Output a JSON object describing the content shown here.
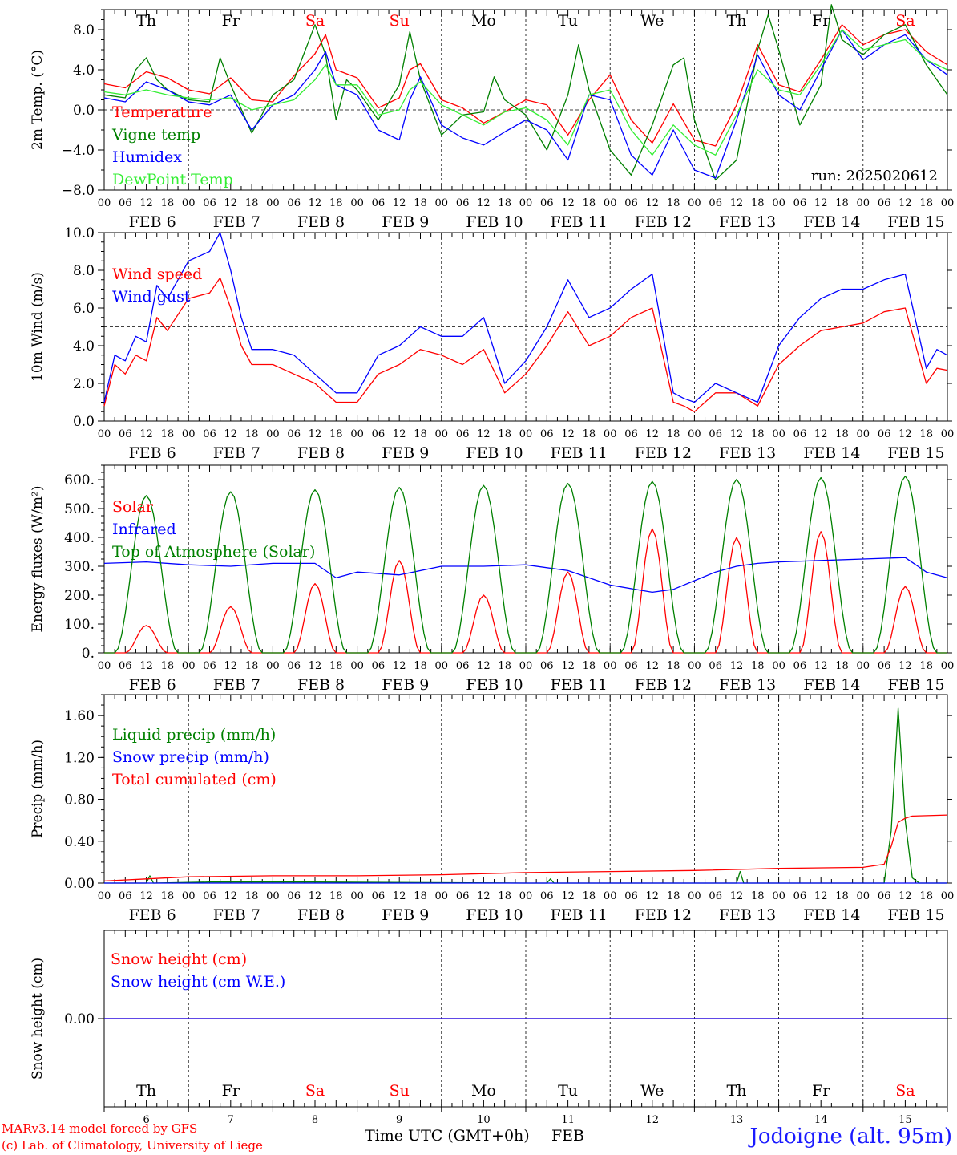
{
  "chart_data": {
    "type": "line",
    "time_axis": {
      "hour_labels": [
        "00",
        "06",
        "12",
        "18"
      ],
      "date_labels": [
        "FEB  6",
        "FEB  7",
        "FEB  8",
        "FEB  9",
        "FEB 10",
        "FEB 11",
        "FEB 12",
        "FEB 13",
        "FEB 14",
        "FEB 15"
      ],
      "weekdays": [
        "Th",
        "Fr",
        "Sa",
        "Su",
        "Mo",
        "Tu",
        "We",
        "Th",
        "Fr",
        "Sa"
      ],
      "weekend": [
        false,
        false,
        true,
        true,
        false,
        false,
        false,
        false,
        false,
        true
      ],
      "day_numbers": [
        "6",
        "7",
        "8",
        "9",
        "10",
        "11",
        "12",
        "13",
        "14",
        "15"
      ],
      "range_hours": [
        0,
        240
      ],
      "title": "Time UTC (GMT+0h)",
      "month": "FEB"
    },
    "panels": [
      {
        "id": "temp",
        "ylabel": "2m Temp. (°C)",
        "ylim": [
          -8,
          10
        ],
        "ticks": [
          -8,
          -4,
          0,
          4,
          8
        ],
        "tick_labels": [
          "−8.0",
          "−4.0",
          "0.0",
          "4.0",
          "8.0"
        ],
        "ref_line": 0,
        "run_label": "run: 2025020612",
        "series": [
          {
            "name": "Temperature",
            "color": "#ff0000",
            "x": [
              0,
              6,
              12,
              18,
              24,
              30,
              36,
              42,
              48,
              54,
              60,
              63,
              66,
              72,
              78,
              84,
              87,
              90,
              96,
              102,
              108,
              114,
              120,
              126,
              132,
              138,
              144,
              150,
              156,
              162,
              168,
              174,
              180,
              186,
              192,
              198,
              204,
              210,
              216,
              222,
              228,
              234,
              240
            ],
            "y": [
              2.6,
              2.2,
              3.8,
              3.2,
              2.0,
              1.6,
              3.2,
              1.0,
              0.8,
              3.4,
              5.6,
              7.5,
              4.0,
              3.2,
              0.2,
              1.2,
              4.0,
              4.6,
              1.0,
              0.2,
              -1.3,
              -0.2,
              1.0,
              0.5,
              -2.5,
              1.0,
              3.5,
              -1.0,
              -3.3,
              0.6,
              -3.0,
              -3.6,
              0.5,
              6.5,
              2.5,
              1.8,
              5.0,
              8.5,
              6.5,
              7.5,
              8.0,
              5.8,
              4.5
            ]
          },
          {
            "name": "Vigne temp",
            "color": "#008000",
            "x": [
              0,
              6,
              9,
              12,
              15,
              18,
              24,
              30,
              33,
              36,
              42,
              48,
              54,
              60,
              63,
              66,
              69,
              72,
              78,
              84,
              87,
              90,
              96,
              102,
              108,
              111,
              114,
              120,
              126,
              132,
              135,
              138,
              144,
              150,
              156,
              162,
              165,
              168,
              174,
              180,
              186,
              189,
              192,
              198,
              204,
              207,
              210,
              216,
              222,
              228,
              234,
              240
            ],
            "y": [
              1.5,
              1.2,
              4.0,
              5.2,
              3.0,
              2.0,
              1.0,
              0.8,
              5.2,
              2.5,
              -2.3,
              1.5,
              3.0,
              8.5,
              5.5,
              -1.0,
              3.0,
              2.0,
              -1.0,
              2.5,
              7.8,
              3.0,
              -2.5,
              -0.5,
              -0.2,
              3.3,
              1.0,
              -0.5,
              -4.0,
              1.5,
              6.5,
              2.0,
              -4.0,
              -6.5,
              -1.5,
              4.5,
              5.2,
              -1.0,
              -7.0,
              -5.0,
              6.0,
              9.5,
              6.0,
              -1.5,
              2.5,
              10.5,
              7.0,
              5.5,
              7.5,
              8.5,
              4.5,
              1.5
            ]
          },
          {
            "name": "Humidex",
            "color": "#0000ff",
            "x": [
              0,
              6,
              12,
              18,
              24,
              30,
              36,
              42,
              48,
              54,
              60,
              63,
              66,
              72,
              78,
              84,
              87,
              90,
              96,
              102,
              108,
              114,
              120,
              126,
              132,
              138,
              144,
              150,
              156,
              162,
              168,
              174,
              180,
              186,
              192,
              198,
              204,
              210,
              216,
              222,
              228,
              234,
              240
            ],
            "y": [
              1.2,
              0.8,
              2.8,
              2.0,
              0.8,
              0.5,
              1.5,
              -2.0,
              0.5,
              1.5,
              4.0,
              5.8,
              2.5,
              1.5,
              -2.0,
              -3.0,
              1.0,
              3.3,
              -1.5,
              -2.8,
              -3.5,
              -2.2,
              -1.0,
              -2.0,
              -5.0,
              1.5,
              1.0,
              -4.5,
              -6.5,
              -2.0,
              -6.0,
              -6.8,
              -1.0,
              5.5,
              1.5,
              0.0,
              4.0,
              8.0,
              5.0,
              6.5,
              7.5,
              5.0,
              3.5
            ]
          },
          {
            "name": "DewPoint Temp",
            "color": "#33ee33",
            "x": [
              0,
              6,
              12,
              18,
              24,
              30,
              36,
              42,
              48,
              54,
              60,
              63,
              66,
              72,
              78,
              84,
              87,
              90,
              96,
              102,
              108,
              114,
              120,
              126,
              132,
              138,
              144,
              150,
              156,
              162,
              168,
              174,
              180,
              186,
              192,
              198,
              204,
              210,
              216,
              222,
              228,
              234,
              240
            ],
            "y": [
              1.8,
              1.5,
              2.0,
              1.5,
              1.2,
              1.0,
              1.2,
              0.0,
              0.5,
              1.0,
              3.0,
              4.5,
              2.5,
              2.5,
              -0.5,
              0.0,
              2.0,
              2.8,
              0.5,
              -0.5,
              -1.5,
              -0.2,
              0.2,
              -1.0,
              -3.5,
              1.5,
              2.0,
              -2.0,
              -4.5,
              -1.5,
              -3.5,
              -4.5,
              -0.5,
              4.0,
              2.0,
              1.5,
              4.5,
              8.0,
              6.0,
              6.5,
              7.0,
              5.0,
              4.0
            ]
          }
        ]
      },
      {
        "id": "wind",
        "ylabel": "10m Wind (m/s)",
        "ylim": [
          0,
          10
        ],
        "ticks": [
          0,
          2,
          4,
          6,
          8,
          10
        ],
        "tick_labels": [
          "0.0",
          "2.0",
          "4.0",
          "6.0",
          "8.0",
          "10.0"
        ],
        "ref_line": 5,
        "series": [
          {
            "name": "Wind speed",
            "color": "#ff0000",
            "x": [
              0,
              3,
              6,
              9,
              12,
              15,
              18,
              24,
              30,
              33,
              36,
              39,
              42,
              48,
              54,
              60,
              66,
              72,
              78,
              84,
              90,
              96,
              102,
              108,
              114,
              120,
              126,
              132,
              138,
              144,
              150,
              156,
              162,
              165,
              168,
              174,
              180,
              186,
              192,
              198,
              204,
              210,
              216,
              222,
              228,
              234,
              237,
              240
            ],
            "y": [
              0.8,
              3.0,
              2.5,
              3.5,
              3.2,
              5.5,
              4.8,
              6.5,
              6.8,
              7.6,
              6.0,
              4.0,
              3.0,
              3.0,
              2.5,
              2.0,
              1.0,
              1.0,
              2.5,
              3.0,
              3.8,
              3.5,
              3.0,
              3.8,
              1.5,
              2.5,
              4.0,
              5.8,
              4.0,
              4.5,
              5.5,
              6.0,
              1.0,
              0.8,
              0.5,
              1.5,
              1.5,
              0.8,
              3.0,
              4.0,
              4.8,
              5.0,
              5.2,
              5.8,
              6.0,
              2.0,
              2.8,
              2.7
            ]
          },
          {
            "name": "Wind gust",
            "color": "#0000ff",
            "x": [
              0,
              3,
              6,
              9,
              12,
              15,
              18,
              24,
              30,
              33,
              36,
              39,
              42,
              48,
              54,
              60,
              66,
              72,
              78,
              84,
              90,
              96,
              102,
              108,
              114,
              120,
              126,
              132,
              138,
              144,
              150,
              156,
              162,
              165,
              168,
              174,
              180,
              186,
              192,
              198,
              204,
              210,
              216,
              222,
              228,
              234,
              237,
              240
            ],
            "y": [
              1.0,
              3.5,
              3.2,
              4.5,
              4.2,
              7.2,
              6.5,
              8.5,
              9.0,
              10.0,
              8.0,
              5.5,
              3.8,
              3.8,
              3.5,
              2.5,
              1.5,
              1.5,
              3.5,
              4.0,
              5.0,
              4.5,
              4.5,
              5.5,
              2.0,
              3.2,
              5.0,
              7.5,
              5.5,
              6.0,
              7.0,
              7.8,
              1.5,
              1.2,
              1.0,
              2.0,
              1.5,
              1.0,
              4.0,
              5.5,
              6.5,
              7.0,
              7.0,
              7.5,
              7.8,
              2.8,
              3.8,
              3.5
            ]
          }
        ]
      },
      {
        "id": "energy",
        "ylabel": "Energy fluxes (W/m²)",
        "ylim": [
          0,
          650
        ],
        "ticks": [
          0,
          100,
          200,
          300,
          400,
          500,
          600
        ],
        "tick_labels": [
          "0.",
          "100.",
          "200.",
          "300.",
          "400.",
          "500.",
          "600."
        ],
        "series": [
          {
            "name": "Solar",
            "color": "#ff0000",
            "peaks": [
              95,
              160,
              240,
              320,
              200,
              280,
              430,
              400,
              420,
              230
            ],
            "width_h": 12
          },
          {
            "name": "Infrared",
            "color": "#0000ff",
            "x": [
              0,
              12,
              24,
              36,
              48,
              60,
              66,
              72,
              84,
              96,
              108,
              120,
              132,
              144,
              156,
              162,
              168,
              174,
              180,
              186,
              192,
              204,
              216,
              228,
              234,
              240
            ],
            "y": [
              310,
              315,
              305,
              300,
              310,
              310,
              260,
              280,
              270,
              300,
              300,
              305,
              285,
              235,
              210,
              220,
              250,
              280,
              300,
              310,
              315,
              320,
              325,
              330,
              280,
              260
            ]
          },
          {
            "name": "Top of Atmosphere (Solar)",
            "color": "#008000",
            "peaks": [
              545,
              558,
              565,
              573,
              580,
              587,
              594,
              601,
              607,
              612
            ],
            "width_h": 18
          }
        ]
      },
      {
        "id": "precip",
        "ylabel": "Precip (mm/h)",
        "ylim": [
          0,
          1.8
        ],
        "ticks": [
          0,
          0.4,
          0.8,
          1.2,
          1.6
        ],
        "tick_labels": [
          "0.00",
          "0.40",
          "0.80",
          "1.20",
          "1.60"
        ],
        "series": [
          {
            "name": "Liquid precip (mm/h)",
            "color": "#008000",
            "x": [
              0,
              12,
              13,
              14,
              30,
              60,
              120,
              126,
              127,
              128,
              180,
              181,
              182,
              222,
              224,
              226,
              228,
              230,
              232,
              234,
              240
            ],
            "y": [
              0,
              0,
              0.07,
              0,
              0.01,
              0.01,
              0,
              0,
              0.04,
              0,
              0,
              0.11,
              0,
              0,
              0.5,
              1.67,
              0.6,
              0.05,
              0,
              0,
              0
            ]
          },
          {
            "name": "Snow precip (mm/h)",
            "color": "#0000ff",
            "x": [
              0,
              240
            ],
            "y": [
              0,
              0
            ]
          },
          {
            "name": "Total cumulated (cm)",
            "color": "#ff0000",
            "x": [
              0,
              12,
              24,
              48,
              72,
              96,
              120,
              144,
              168,
              192,
              216,
              222,
              224,
              226,
              228,
              230,
              240
            ],
            "y": [
              0.02,
              0.04,
              0.06,
              0.07,
              0.07,
              0.08,
              0.1,
              0.11,
              0.12,
              0.14,
              0.15,
              0.18,
              0.35,
              0.58,
              0.62,
              0.64,
              0.65
            ]
          }
        ]
      },
      {
        "id": "snow",
        "ylabel": "Snow height (cm)",
        "ylim": [
          -1,
          1
        ],
        "ticks": [
          0
        ],
        "tick_labels": [
          "0.00"
        ],
        "series": [
          {
            "name": "Snow height (cm)",
            "color": "#ff0000",
            "x": [
              0,
              240
            ],
            "y": [
              0,
              0
            ]
          },
          {
            "name": "Snow height (cm W.E.)",
            "color": "#0000ff",
            "x": [
              0,
              240
            ],
            "y": [
              0,
              0
            ]
          }
        ]
      }
    ]
  },
  "footer": {
    "model": "MARv3.14 model forced by GFS",
    "credit": "(c) Lab. of Climatology, University of Liege",
    "station": "Jodoigne (alt. 95m)"
  }
}
